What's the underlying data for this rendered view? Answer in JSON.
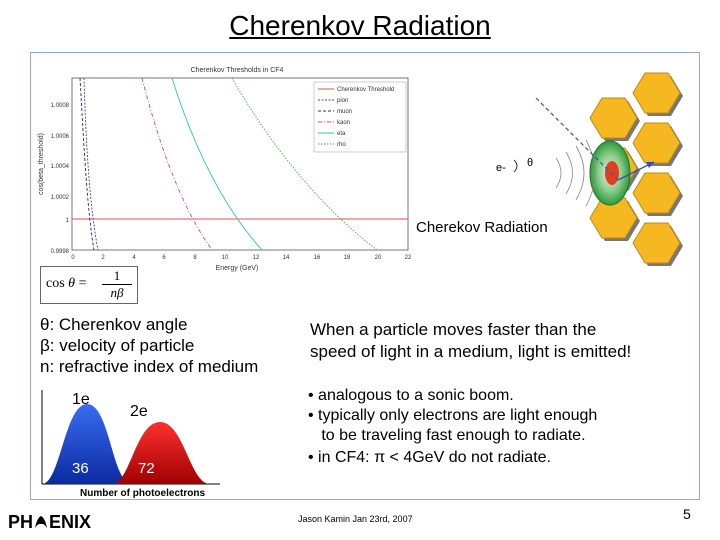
{
  "slide": {
    "title": "Cherenkov Radiation",
    "page_number": "5",
    "footer": "Jason Kamin Jan 23rd, 2007"
  },
  "plot": {
    "title": "Cherenkov Thresholds in CF4",
    "ylabel": "cos(beta_threshold)",
    "xlabel": "Energy (GeV)",
    "xticks": [
      "0",
      "2",
      "4",
      "6",
      "8",
      "10",
      "12",
      "14",
      "16",
      "18",
      "20",
      "22"
    ],
    "yticks": [
      "1.0008",
      "1.0006",
      "1.0004",
      "1.0002",
      "1",
      "0.9998"
    ],
    "legend": [
      "Cherenkov Threshold",
      "pion",
      "muon",
      "kaon",
      "eta",
      "rho"
    ],
    "colors": [
      "#e05050",
      "#4040c0",
      "#c040c0",
      "#30c0c0",
      "#40b040",
      "#303030"
    ]
  },
  "detector": {
    "electron_label": "e-",
    "theta_label": "θ",
    "caption": "Cherekov Radiation"
  },
  "formula": {
    "lhs": "cos",
    "theta": "θ",
    "equals": "=",
    "numerator": "1",
    "denominator": "nβ"
  },
  "definitions": [
    "θ: Cherenkov angle",
    "β: velocity of particle",
    "n: refractive index of medium"
  ],
  "main_statement": [
    "When a particle moves faster than the",
    "speed of light in a medium, light is emitted!"
  ],
  "bullets": [
    "• analogous to a sonic boom.",
    "• typically only electrons are light enough",
    "   to be traveling fast enough to radiate.",
    "• in CF4: π < 4GeV do not radiate."
  ],
  "histogram": {
    "labels": [
      "1e",
      "2e"
    ],
    "values": [
      "36",
      "72"
    ],
    "xlabel": "Number of photoelectrons"
  },
  "logo": {
    "left": "PH",
    "right": "ENIX"
  }
}
